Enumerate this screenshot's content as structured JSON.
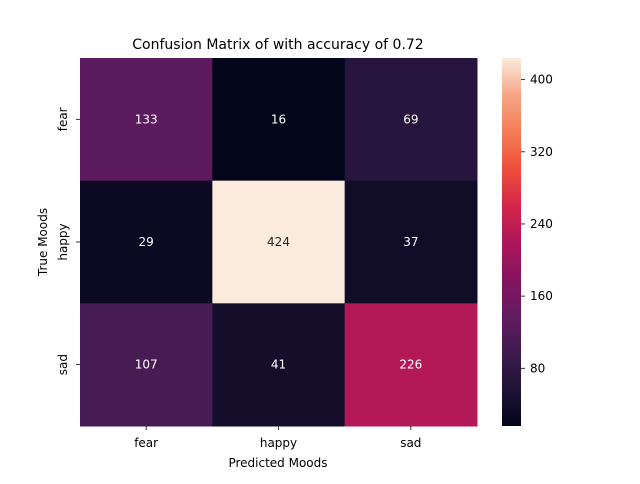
{
  "chart_data": {
    "type": "heatmap",
    "title": "Confusion Matrix of with accuracy of 0.72",
    "xlabel": "Predicted Moods",
    "ylabel": "True Moods",
    "x_categories": [
      "fear",
      "happy",
      "sad"
    ],
    "y_categories": [
      "fear",
      "happy",
      "sad"
    ],
    "values": [
      [
        133,
        16,
        69
      ],
      [
        29,
        424,
        37
      ],
      [
        107,
        41,
        226
      ]
    ],
    "colorscale": {
      "name": "rocket",
      "min": 16,
      "max": 424,
      "ticks": [
        80,
        160,
        240,
        320,
        400
      ]
    },
    "grid": false
  }
}
